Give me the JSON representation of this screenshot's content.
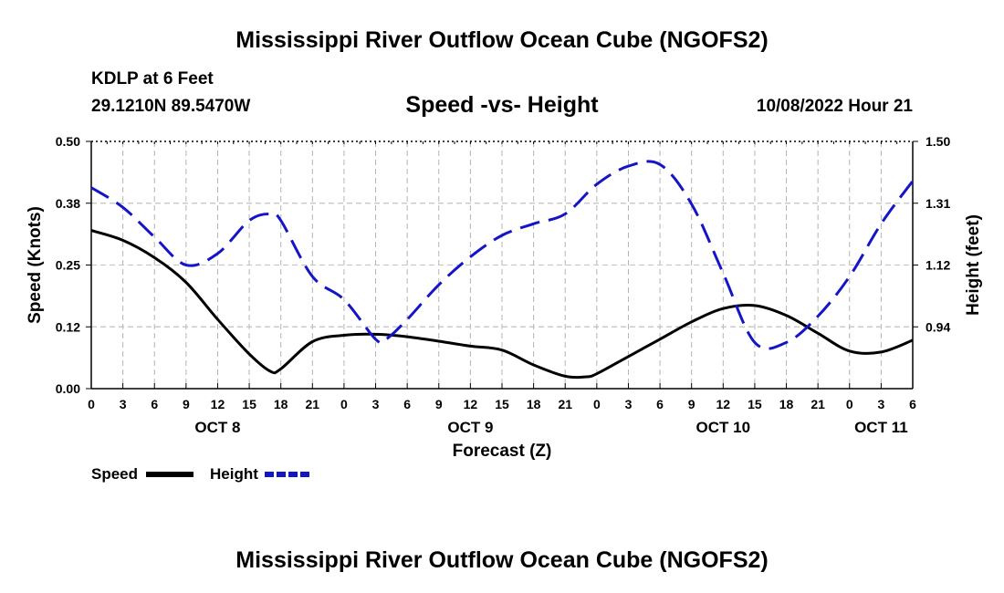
{
  "header": {
    "title": "Mississippi River Outflow Ocean Cube (NGOFS2)",
    "station": "KDLP at 6 Feet",
    "coordinates": "29.1210N  89.5470W",
    "subtitle": "Speed -vs- Height",
    "timestamp": "10/08/2022 Hour 21"
  },
  "footer": {
    "title": "Mississippi River Outflow Ocean Cube (NGOFS2)"
  },
  "chart_data": {
    "type": "line",
    "title": "Speed -vs- Height",
    "xlabel": "Forecast (Z)",
    "ylabel": "Speed (Knots)",
    "y2label": "Height (feet)",
    "x_unit": "hours since Oct 8 00Z",
    "xlim": [
      0,
      78
    ],
    "ylim": [
      0,
      0.5
    ],
    "y2lim": [
      0.75,
      1.5
    ],
    "x_ticks": [
      0,
      3,
      6,
      9,
      12,
      15,
      18,
      21,
      24,
      27,
      30,
      33,
      36,
      39,
      42,
      45,
      48,
      51,
      54,
      57,
      60,
      63,
      66,
      69,
      72,
      75,
      78
    ],
    "x_tick_labels": [
      "0",
      "3",
      "6",
      "9",
      "12",
      "15",
      "18",
      "21",
      "0",
      "3",
      "6",
      "9",
      "12",
      "15",
      "18",
      "21",
      "0",
      "3",
      "6",
      "9",
      "12",
      "15",
      "18",
      "21",
      "0",
      "3",
      "6"
    ],
    "date_labels": [
      {
        "label": "OCT 8",
        "x": 12
      },
      {
        "label": "OCT 9",
        "x": 36
      },
      {
        "label": "OCT 10",
        "x": 60
      },
      {
        "label": "OCT 11",
        "x": 75
      }
    ],
    "y_ticks": [
      0,
      0.125,
      0.25,
      0.375,
      0.5
    ],
    "y_tick_labels": [
      "0.00",
      "0.12",
      "0.25",
      "0.38",
      "0.50"
    ],
    "y2_ticks": [
      0.9375,
      1.125,
      1.3125,
      1.5
    ],
    "y2_tick_labels": [
      "0.94",
      "1.12",
      "1.31",
      "1.50"
    ],
    "grid": true,
    "legend_position": "bottom-left",
    "series": [
      {
        "name": "Speed",
        "axis": "left",
        "color": "#000000",
        "dash": "solid",
        "x": [
          0,
          3,
          6,
          9,
          12,
          15,
          17,
          18,
          21,
          24,
          27,
          30,
          33,
          36,
          39,
          42,
          45,
          47,
          48,
          51,
          54,
          57,
          60,
          63,
          66,
          69,
          72,
          75,
          78
        ],
        "values": [
          0.32,
          0.3,
          0.265,
          0.215,
          0.14,
          0.07,
          0.035,
          0.04,
          0.095,
          0.108,
          0.11,
          0.105,
          0.096,
          0.086,
          0.078,
          0.048,
          0.025,
          0.024,
          0.03,
          0.065,
          0.1,
          0.135,
          0.162,
          0.168,
          0.148,
          0.112,
          0.076,
          0.074,
          0.098
        ]
      },
      {
        "name": "Height",
        "axis": "right",
        "color": "#1515c8",
        "dash": "dashed",
        "x": [
          0,
          3,
          6,
          9,
          12,
          15,
          17,
          18,
          21,
          24,
          27,
          28,
          30,
          33,
          36,
          39,
          42,
          45,
          48,
          51,
          54,
          57,
          60,
          63,
          66,
          69,
          72,
          75,
          78
        ],
        "values": [
          1.36,
          1.3,
          1.21,
          1.125,
          1.16,
          1.26,
          1.28,
          1.26,
          1.09,
          1.02,
          0.9,
          0.9,
          0.96,
          1.065,
          1.15,
          1.215,
          1.25,
          1.28,
          1.37,
          1.425,
          1.43,
          1.31,
          1.1,
          0.89,
          0.89,
          0.97,
          1.09,
          1.25,
          1.38
        ]
      }
    ]
  }
}
